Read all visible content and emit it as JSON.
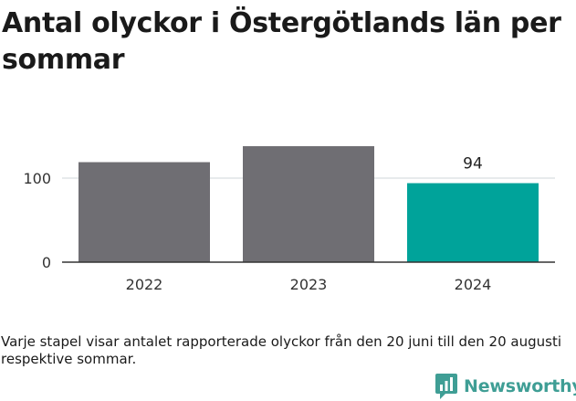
{
  "title": "Antal olyckor i Östergötlands län per sommar",
  "caption": "Varje stapel visar antalet rapporterade olyckor från den 20 juni till den 20 augusti respektive sommar.",
  "logo": {
    "text": "Newsworthy",
    "icon": "bar-chart-badge-icon"
  },
  "colors": {
    "bar": "#6f6e73",
    "highlight": "#00a39a",
    "grid": "#dfe3e6",
    "axis": "#333333",
    "logo": "#3f9e95"
  },
  "chart_data": {
    "type": "bar",
    "categories": [
      "2022",
      "2023",
      "2024"
    ],
    "values": [
      119,
      138,
      94
    ],
    "highlight_index": 2,
    "data_labels": [
      null,
      null,
      "94"
    ],
    "yticks": [
      0,
      100
    ],
    "ylim": [
      0,
      150
    ],
    "grid": true,
    "title": "Antal olyckor i Östergötlands län per sommar",
    "xlabel": "",
    "ylabel": ""
  }
}
